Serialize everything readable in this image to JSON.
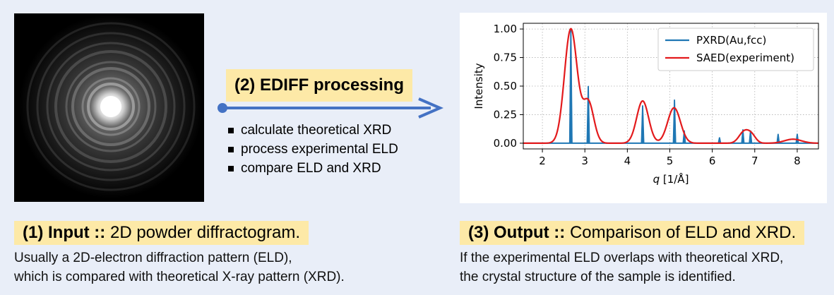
{
  "input": {
    "heading_bold": "(1) Input ::",
    "heading_rest": " 2D powder diffractogram.",
    "caption_line1": "Usually a 2D-electron diffraction pattern (ELD),",
    "caption_line2": "which is compared with theoretical X-ray pattern (XRD)."
  },
  "processing": {
    "title": "(2) EDIFF processing",
    "bullets": [
      "calculate theoretical XRD",
      "process experimental ELD",
      "compare ELD and XRD"
    ],
    "arrow_color": "#4472c4"
  },
  "output": {
    "heading_bold": "(3) Output ::",
    "heading_rest": " Comparison of ELD and XRD.",
    "caption_line1": "If the experimental ELD overlaps with theoretical XRD,",
    "caption_line2": "the crystal structure of the sample is identified."
  },
  "chart_data": {
    "type": "line",
    "xlabel_italic": "q",
    "xlabel_rest": " [1/Å]",
    "ylabel": "Intensity",
    "xlim": [
      1.55,
      8.5
    ],
    "ylim": [
      -0.05,
      1.05
    ],
    "xticks": [
      2,
      3,
      4,
      5,
      6,
      7,
      8
    ],
    "yticks": [
      "0.00",
      "0.25",
      "0.50",
      "0.75",
      "1.00"
    ],
    "ytick_values": [
      0,
      0.25,
      0.5,
      0.75,
      1.0
    ],
    "grid": true,
    "legend_position": "top-right",
    "series": [
      {
        "name": "PXRD(Au,fcc)",
        "color": "#1f77b4",
        "kind": "sticks",
        "peaks": [
          {
            "q": 2.67,
            "i": 1.0
          },
          {
            "q": 3.08,
            "i": 0.5
          },
          {
            "q": 4.36,
            "i": 0.33
          },
          {
            "q": 5.11,
            "i": 0.38
          },
          {
            "q": 5.34,
            "i": 0.11
          },
          {
            "q": 6.17,
            "i": 0.05
          },
          {
            "q": 6.72,
            "i": 0.12
          },
          {
            "q": 6.9,
            "i": 0.11
          },
          {
            "q": 7.55,
            "i": 0.08
          },
          {
            "q": 8.0,
            "i": 0.08
          }
        ]
      },
      {
        "name": "SAED(experiment)",
        "color": "#e31a1c",
        "kind": "smooth",
        "peaks": [
          {
            "q": 2.67,
            "i": 1.0,
            "w": 0.15
          },
          {
            "q": 3.08,
            "i": 0.36,
            "w": 0.13
          },
          {
            "q": 4.36,
            "i": 0.37,
            "w": 0.14
          },
          {
            "q": 5.1,
            "i": 0.31,
            "w": 0.15
          },
          {
            "q": 6.75,
            "i": 0.1,
            "w": 0.12
          },
          {
            "q": 6.93,
            "i": 0.06,
            "w": 0.1
          },
          {
            "q": 7.9,
            "i": 0.035,
            "w": 0.2
          }
        ]
      }
    ]
  }
}
